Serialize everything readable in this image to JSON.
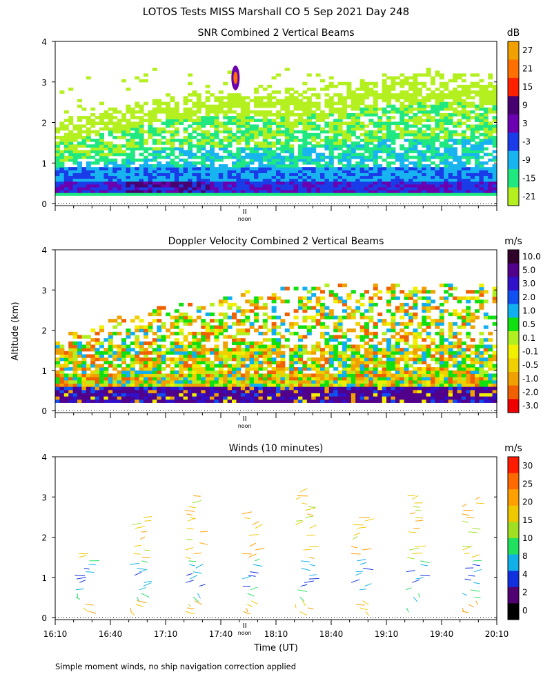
{
  "page": {
    "title": "LOTOS Tests MISS Marshall CO   5 Sep 2021 Day 248",
    "footnote": "Simple moment winds, no ship navigation correction applied",
    "ylabel": "Altitude (km)",
    "xlabel": "Time (UT)",
    "noon_label": "noon"
  },
  "chart_data": [
    {
      "type": "heatmap",
      "name": "snr",
      "title": "SNR Combined 2 Vertical Beams",
      "units": "dB",
      "xlabel": "Time (UT)",
      "ylabel": "Altitude (km)",
      "xlim": [
        "16:10",
        "20:10"
      ],
      "ylim": [
        0,
        4
      ],
      "y_ticks": [
        "0",
        "1",
        "2",
        "3",
        "4"
      ],
      "colorbar_labels": [
        "27",
        "21",
        "15",
        "9",
        "3",
        "-3",
        "-9",
        "-15",
        "-21"
      ],
      "colorbar_colors": [
        "#f0a000",
        "#ff7000",
        "#ff2000",
        "#480070",
        "#6a00b0",
        "#1a3ce8",
        "#18b4f0",
        "#20e880",
        "#b4f020"
      ],
      "description_of_field": {
        "lowest_layer_km": [
          0.2,
          0.5
        ],
        "boundary_layer_top_km": [
          1.5,
          2.5
        ],
        "sparse_top_km": 3.2,
        "hot_spot": {
          "time": "17:40",
          "altitude_km": 3.1,
          "dB": 21
        }
      }
    },
    {
      "type": "heatmap",
      "name": "doppler",
      "title": "Doppler Velocity Combined 2 Vertical Beams",
      "units": "m/s",
      "xlabel": "Time (UT)",
      "ylabel": "Altitude (km)",
      "xlim": [
        "16:10",
        "20:10"
      ],
      "ylim": [
        0,
        4
      ],
      "y_ticks": [
        "0",
        "1",
        "2",
        "3",
        "4"
      ],
      "colorbar_labels": [
        "10.0",
        "5.0",
        "3.0",
        "2.0",
        "1.0",
        "0.5",
        "0.1",
        "-0.1",
        "-0.5",
        "-1.0",
        "-2.0",
        "-3.0"
      ],
      "colorbar_colors": [
        "#30002a",
        "#50008a",
        "#3010c8",
        "#1050f0",
        "#10b0f0",
        "#10e010",
        "#b0f020",
        "#f0f000",
        "#f0d000",
        "#f0a000",
        "#f06000",
        "#f00000"
      ]
    },
    {
      "type": "scatter",
      "name": "winds",
      "title": "Winds (10 minutes)",
      "units": "m/s",
      "xlabel": "Time (UT)",
      "ylabel": "Altitude (km)",
      "xlim": [
        "16:10",
        "20:10"
      ],
      "ylim": [
        0,
        4
      ],
      "x_ticks": [
        "16:10",
        "16:40",
        "17:10",
        "17:40",
        "18:10",
        "18:40",
        "19:10",
        "19:40",
        "20:10"
      ],
      "y_ticks": [
        "0",
        "1",
        "2",
        "3",
        "4"
      ],
      "colorbar_labels": [
        "30",
        "25",
        "20",
        "15",
        "10",
        "8",
        "4",
        "2",
        "0"
      ],
      "colorbar_colors": [
        "#ff1a00",
        "#ff6a00",
        "#ffa000",
        "#f0c800",
        "#a0e020",
        "#20e060",
        "#10b0e8",
        "#1030e0",
        "#500070",
        "#000000"
      ],
      "profile_times": [
        "16:25",
        "16:55",
        "17:25",
        "17:55",
        "18:25",
        "18:55",
        "19:25",
        "19:55"
      ]
    }
  ]
}
